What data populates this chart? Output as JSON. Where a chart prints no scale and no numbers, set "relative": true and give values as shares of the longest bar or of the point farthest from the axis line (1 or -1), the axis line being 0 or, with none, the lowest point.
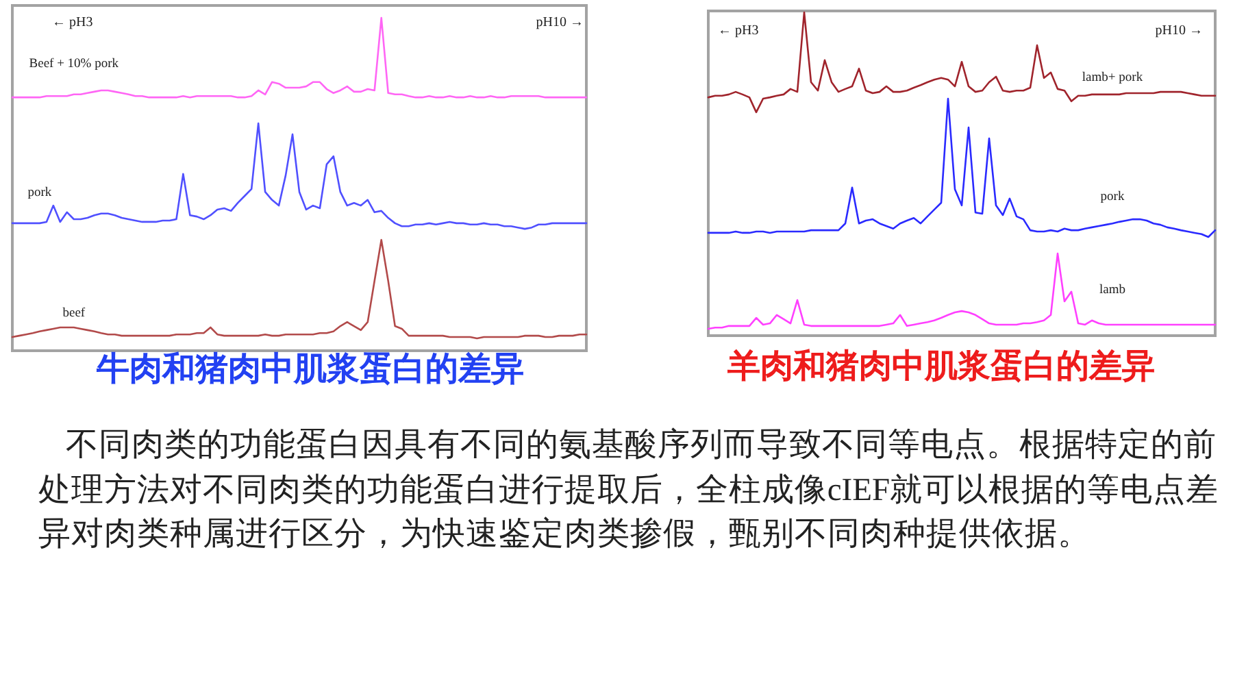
{
  "chart_data": [
    {
      "type": "line",
      "title": "牛肉和猪肉中肌浆蛋白的差异",
      "relative": true,
      "tick_labels": false,
      "annotations": [
        "← pH3",
        "pH10 →"
      ],
      "categories": [
        null,
        null,
        null,
        null,
        null,
        null,
        null,
        null,
        null,
        null,
        null,
        null,
        null,
        null,
        null,
        null,
        null,
        null,
        null,
        null,
        null,
        null,
        null,
        null,
        null,
        null,
        null,
        null,
        null,
        null,
        null,
        null,
        null,
        null,
        null,
        null,
        null,
        null,
        null,
        null,
        null,
        null,
        null,
        null,
        null,
        null,
        null,
        null,
        null,
        null,
        null,
        null,
        null,
        null,
        null,
        null,
        null,
        null,
        null,
        null,
        null,
        null,
        null,
        null,
        null,
        null,
        null,
        null,
        null,
        null,
        null,
        null,
        null,
        null,
        null,
        null,
        null,
        null,
        null,
        null,
        null,
        null,
        null,
        null,
        null
      ],
      "series": [
        {
          "name": "Beef + 10% pork",
          "color": "#ff66f5",
          "values": [
            0.761,
            0.761,
            0.761,
            0.761,
            0.761,
            0.765,
            0.765,
            0.765,
            0.765,
            0.77,
            0.77,
            0.774,
            0.778,
            0.782,
            0.782,
            0.778,
            0.774,
            0.77,
            0.765,
            0.765,
            0.761,
            0.761,
            0.761,
            0.761,
            0.761,
            0.765,
            0.761,
            0.765,
            0.765,
            0.765,
            0.765,
            0.765,
            0.765,
            0.761,
            0.761,
            0.765,
            0.782,
            0.77,
            0.807,
            0.802,
            0.79,
            0.79,
            0.79,
            0.794,
            0.807,
            0.807,
            0.786,
            0.774,
            0.782,
            0.794,
            0.778,
            0.778,
            0.786,
            0.782,
            1,
            0.774,
            0.77,
            0.77,
            0.765,
            0.761,
            0.761,
            0.765,
            0.761,
            0.761,
            0.765,
            0.761,
            0.761,
            0.765,
            0.761,
            0.761,
            0.765,
            0.761,
            0.761,
            0.765,
            0.765,
            0.765,
            0.765,
            0.765,
            0.761,
            0.761,
            0.761,
            0.761,
            0.761,
            0.761,
            0.761
          ]
        },
        {
          "name": "pork",
          "color": "#5050ff",
          "values": [
            0.383,
            0.383,
            0.383,
            0.383,
            0.383,
            0.387,
            0.436,
            0.387,
            0.416,
            0.395,
            0.395,
            0.399,
            0.407,
            0.412,
            0.412,
            0.407,
            0.399,
            0.395,
            0.391,
            0.387,
            0.387,
            0.387,
            0.391,
            0.391,
            0.395,
            0.531,
            0.407,
            0.403,
            0.395,
            0.407,
            0.424,
            0.428,
            0.42,
            0.444,
            0.465,
            0.486,
            0.683,
            0.477,
            0.453,
            0.436,
            0.527,
            0.65,
            0.477,
            0.424,
            0.436,
            0.428,
            0.56,
            0.584,
            0.477,
            0.436,
            0.444,
            0.436,
            0.453,
            0.416,
            0.42,
            0.399,
            0.383,
            0.374,
            0.374,
            0.379,
            0.379,
            0.383,
            0.379,
            0.383,
            0.387,
            0.383,
            0.383,
            0.379,
            0.379,
            0.383,
            0.379,
            0.379,
            0.374,
            0.374,
            0.37,
            0.366,
            0.37,
            0.379,
            0.379,
            0.383,
            0.383,
            0.383,
            0.383,
            0.383,
            0.383
          ]
        },
        {
          "name": "beef",
          "color": "#b24a4a",
          "values": [
            0.041,
            0.045,
            0.049,
            0.053,
            0.058,
            0.062,
            0.066,
            0.07,
            0.07,
            0.07,
            0.066,
            0.062,
            0.058,
            0.053,
            0.049,
            0.049,
            0.045,
            0.045,
            0.045,
            0.045,
            0.045,
            0.045,
            0.045,
            0.045,
            0.049,
            0.049,
            0.049,
            0.053,
            0.053,
            0.07,
            0.049,
            0.045,
            0.045,
            0.045,
            0.045,
            0.045,
            0.045,
            0.049,
            0.045,
            0.045,
            0.049,
            0.049,
            0.049,
            0.049,
            0.049,
            0.053,
            0.053,
            0.058,
            0.074,
            0.086,
            0.074,
            0.062,
            0.086,
            0.21,
            0.333,
            0.21,
            0.074,
            0.066,
            0.045,
            0.045,
            0.045,
            0.045,
            0.045,
            0.045,
            0.041,
            0.041,
            0.041,
            0.041,
            0.037,
            0.041,
            0.041,
            0.041,
            0.041,
            0.041,
            0.041,
            0.045,
            0.045,
            0.045,
            0.041,
            0.041,
            0.045,
            0.045,
            0.045,
            0.049,
            0.049
          ]
        }
      ]
    },
    {
      "type": "line",
      "title": "羊肉和猪肉中肌浆蛋白的差异",
      "relative": true,
      "tick_labels": false,
      "annotations": [
        "← pH3",
        "pH10 →"
      ],
      "categories": [
        null,
        null,
        null,
        null,
        null,
        null,
        null,
        null,
        null,
        null,
        null,
        null,
        null,
        null,
        null,
        null,
        null,
        null,
        null,
        null,
        null,
        null,
        null,
        null,
        null,
        null,
        null,
        null,
        null,
        null,
        null,
        null,
        null,
        null,
        null,
        null,
        null,
        null,
        null,
        null,
        null,
        null,
        null,
        null,
        null,
        null,
        null,
        null,
        null,
        null,
        null,
        null,
        null,
        null,
        null,
        null,
        null,
        null,
        null,
        null,
        null,
        null,
        null,
        null,
        null,
        null,
        null,
        null,
        null,
        null,
        null,
        null,
        null,
        null,
        null
      ],
      "series": [
        {
          "name": "lamb+ pork",
          "color": "#a0242c",
          "values": [
            0.737,
            0.742,
            0.742,
            0.746,
            0.754,
            0.746,
            0.737,
            0.691,
            0.733,
            0.737,
            0.742,
            0.746,
            0.763,
            0.754,
            1,
            0.784,
            0.758,
            0.852,
            0.784,
            0.754,
            0.763,
            0.771,
            0.826,
            0.758,
            0.75,
            0.754,
            0.771,
            0.754,
            0.754,
            0.758,
            0.767,
            0.775,
            0.784,
            0.792,
            0.797,
            0.792,
            0.771,
            0.847,
            0.771,
            0.754,
            0.758,
            0.784,
            0.801,
            0.758,
            0.754,
            0.758,
            0.758,
            0.767,
            0.898,
            0.797,
            0.814,
            0.763,
            0.758,
            0.725,
            0.742,
            0.742,
            0.746,
            0.746,
            0.746,
            0.746,
            0.746,
            0.75,
            0.75,
            0.75,
            0.75,
            0.75,
            0.754,
            0.754,
            0.754,
            0.754,
            0.75,
            0.746,
            0.742,
            0.742,
            0.742
          ]
        },
        {
          "name": "pork",
          "color": "#2a2aff",
          "values": [
            0.318,
            0.318,
            0.318,
            0.318,
            0.322,
            0.318,
            0.318,
            0.322,
            0.322,
            0.318,
            0.322,
            0.322,
            0.322,
            0.322,
            0.322,
            0.326,
            0.326,
            0.326,
            0.326,
            0.326,
            0.347,
            0.458,
            0.347,
            0.356,
            0.36,
            0.347,
            0.339,
            0.331,
            0.347,
            0.356,
            0.364,
            0.347,
            0.369,
            0.39,
            0.411,
            0.733,
            0.453,
            0.403,
            0.644,
            0.381,
            0.377,
            0.61,
            0.403,
            0.373,
            0.424,
            0.369,
            0.36,
            0.326,
            0.322,
            0.322,
            0.326,
            0.322,
            0.331,
            0.326,
            0.326,
            0.331,
            0.335,
            0.339,
            0.343,
            0.347,
            0.352,
            0.356,
            0.36,
            0.36,
            0.356,
            0.347,
            0.343,
            0.335,
            0.331,
            0.326,
            0.322,
            0.318,
            0.314,
            0.305,
            0.326
          ]
        },
        {
          "name": "lamb",
          "color": "#ff40ff",
          "values": [
            0.021,
            0.025,
            0.025,
            0.03,
            0.03,
            0.03,
            0.03,
            0.055,
            0.034,
            0.038,
            0.064,
            0.051,
            0.038,
            0.11,
            0.034,
            0.03,
            0.03,
            0.03,
            0.03,
            0.03,
            0.03,
            0.03,
            0.03,
            0.03,
            0.03,
            0.03,
            0.034,
            0.038,
            0.064,
            0.03,
            0.034,
            0.038,
            0.042,
            0.047,
            0.055,
            0.064,
            0.072,
            0.076,
            0.072,
            0.064,
            0.051,
            0.038,
            0.034,
            0.034,
            0.034,
            0.034,
            0.038,
            0.038,
            0.042,
            0.047,
            0.064,
            0.254,
            0.106,
            0.136,
            0.038,
            0.034,
            0.047,
            0.038,
            0.034,
            0.034,
            0.034,
            0.034,
            0.034,
            0.034,
            0.034,
            0.034,
            0.034,
            0.034,
            0.034,
            0.034,
            0.034,
            0.034,
            0.034,
            0.034,
            0.034
          ]
        }
      ]
    },
    {
      "type": "other",
      "annotations": [
        "不同肉类的功能蛋白因具有不同的氨基酸序列而导致不同等电点。根据特定的前处理方法对不同肉类的功能蛋白进行提取后，全柱成像 cIEF 就可以根据的等电点差异对肉类种属进行区分，为快速鉴定肉类掺假，甄别不同肉种提供依据。"
      ]
    }
  ]
}
